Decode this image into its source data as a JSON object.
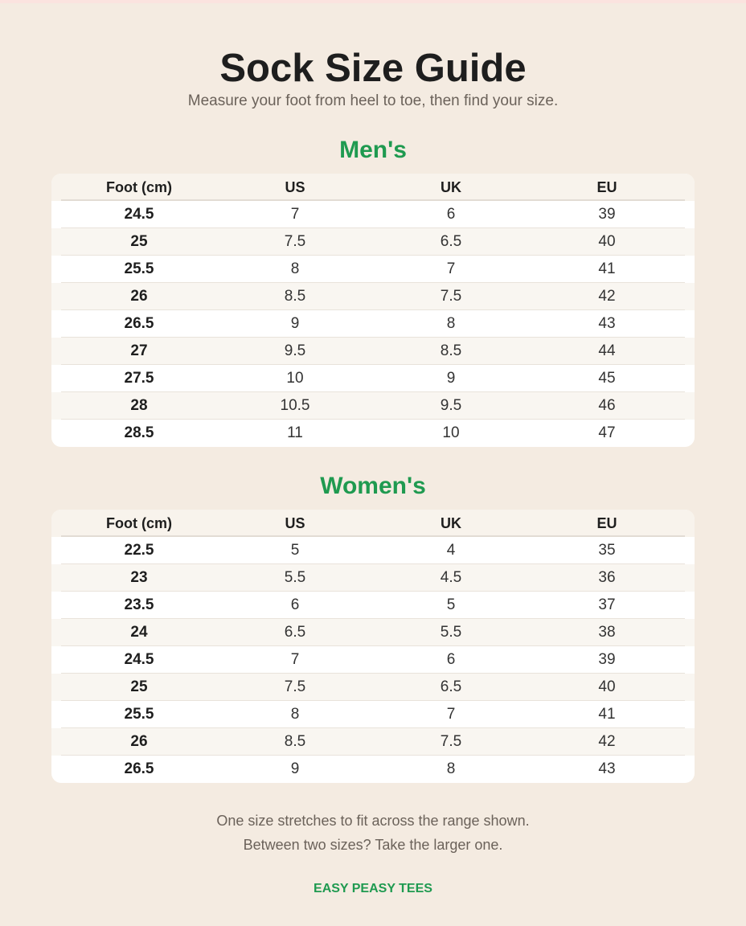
{
  "header": {
    "title": "Sock Size Guide",
    "subtitle": "Measure your foot from heel to toe, then find your size."
  },
  "sections": [
    {
      "title": "Men's",
      "columns": [
        "Foot (cm)",
        "US",
        "UK",
        "EU"
      ],
      "rows": [
        [
          "24.5",
          "7",
          "6",
          "39"
        ],
        [
          "25",
          "7.5",
          "6.5",
          "40"
        ],
        [
          "25.5",
          "8",
          "7",
          "41"
        ],
        [
          "26",
          "8.5",
          "7.5",
          "42"
        ],
        [
          "26.5",
          "9",
          "8",
          "43"
        ],
        [
          "27",
          "9.5",
          "8.5",
          "44"
        ],
        [
          "27.5",
          "10",
          "9",
          "45"
        ],
        [
          "28",
          "10.5",
          "9.5",
          "46"
        ],
        [
          "28.5",
          "11",
          "10",
          "47"
        ]
      ]
    },
    {
      "title": "Women's",
      "columns": [
        "Foot (cm)",
        "US",
        "UK",
        "EU"
      ],
      "rows": [
        [
          "22.5",
          "5",
          "4",
          "35"
        ],
        [
          "23",
          "5.5",
          "4.5",
          "36"
        ],
        [
          "23.5",
          "6",
          "5",
          "37"
        ],
        [
          "24",
          "6.5",
          "5.5",
          "38"
        ],
        [
          "24.5",
          "7",
          "6",
          "39"
        ],
        [
          "25",
          "7.5",
          "6.5",
          "40"
        ],
        [
          "25.5",
          "8",
          "7",
          "41"
        ],
        [
          "26",
          "8.5",
          "7.5",
          "42"
        ],
        [
          "26.5",
          "9",
          "8",
          "43"
        ]
      ]
    }
  ],
  "footer": {
    "lines": [
      "One size stretches to fit across the range shown.",
      "Between two sizes? Take the larger one."
    ],
    "brand": "EASY PEASY TEES"
  }
}
